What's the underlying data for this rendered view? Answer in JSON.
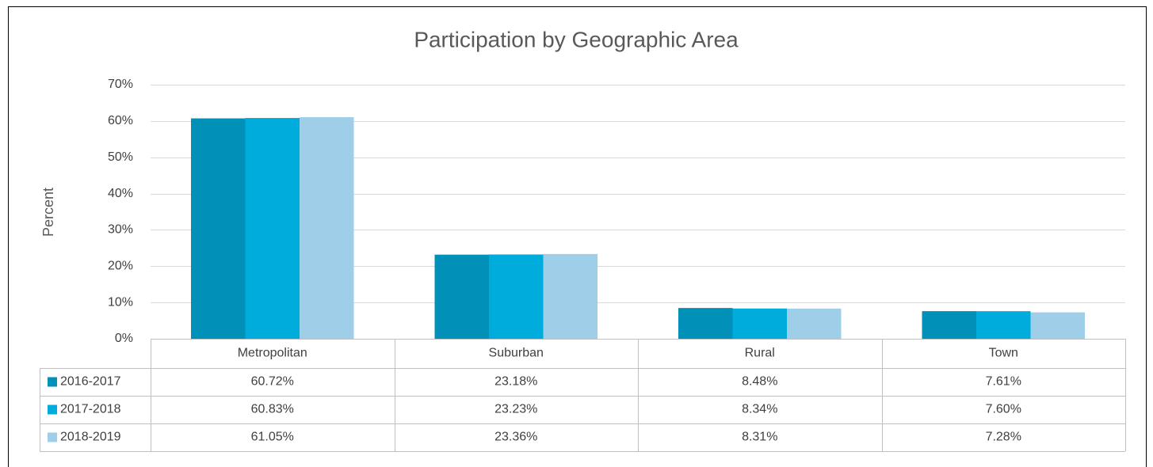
{
  "chart_data": {
    "type": "bar",
    "title": "Participation by Geographic Area",
    "y_label": "Percent",
    "categories": [
      "Metropolitan",
      "Suburban",
      "Rural",
      "Town"
    ],
    "series": [
      {
        "name": "2016-2017",
        "color": "#0090b8",
        "values": [
          60.72,
          23.18,
          8.48,
          7.61
        ],
        "value_labels": [
          "60.72%",
          "23.18%",
          "8.48%",
          "7.61%"
        ]
      },
      {
        "name": "2017-2018",
        "color": "#00acdc",
        "values": [
          60.83,
          23.23,
          8.34,
          7.6
        ],
        "value_labels": [
          "60.83%",
          "23.23%",
          "8.34%",
          "7.60%"
        ]
      },
      {
        "name": "2018-2019",
        "color": "#9fcfe8",
        "values": [
          61.05,
          23.36,
          8.31,
          7.28
        ],
        "value_labels": [
          "61.05%",
          "23.36%",
          "8.31%",
          "7.28%"
        ]
      }
    ],
    "ylim": [
      0,
      70
    ],
    "yticks": [
      {
        "value": 0,
        "label": "0%"
      },
      {
        "value": 10,
        "label": "10%"
      },
      {
        "value": 20,
        "label": "20%"
      },
      {
        "value": 30,
        "label": "30%"
      },
      {
        "value": 40,
        "label": "40%"
      },
      {
        "value": 50,
        "label": "50%"
      },
      {
        "value": 60,
        "label": "60%"
      },
      {
        "value": 70,
        "label": "70%"
      }
    ],
    "grid": true
  }
}
